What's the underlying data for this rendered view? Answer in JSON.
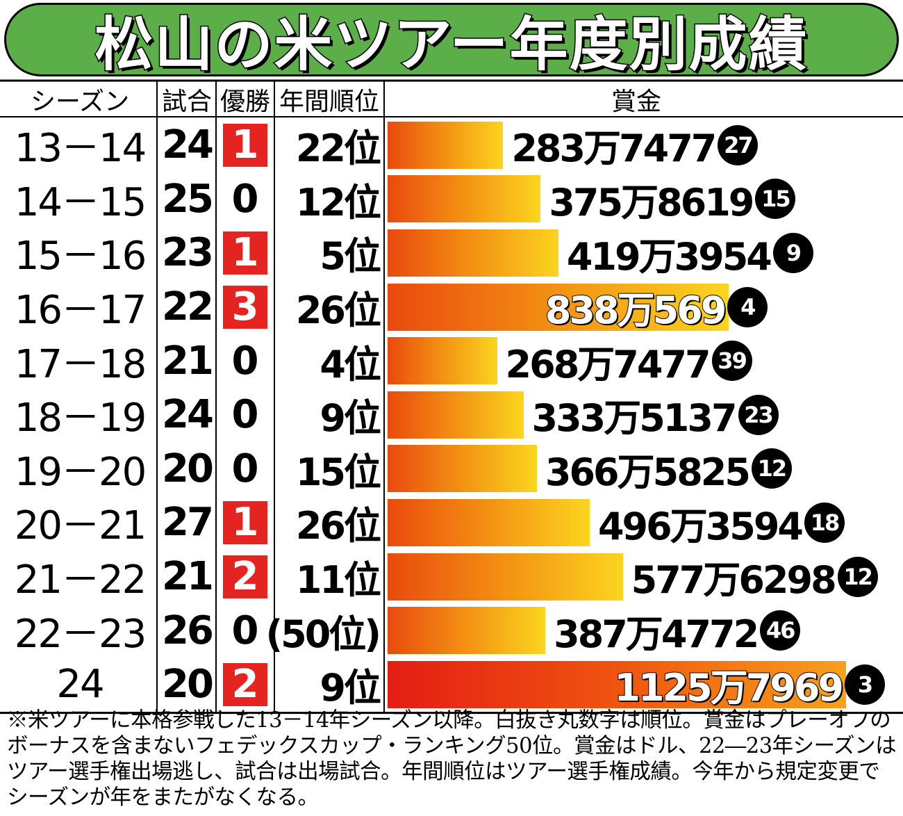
{
  "title": "松山の米ツアー年度別成績",
  "headers": {
    "season": "シーズン",
    "games": "試合",
    "wins": "優勝",
    "rank": "年間順位",
    "prize": "賞金"
  },
  "chart_data": {
    "type": "bar",
    "xlabel": "賞金",
    "categories": [
      "13－14",
      "14－15",
      "15－16",
      "16－17",
      "17－18",
      "18－19",
      "19－20",
      "20－21",
      "21－22",
      "22－23",
      "24"
    ],
    "games": [
      "24",
      "25",
      "23",
      "22",
      "21",
      "24",
      "20",
      "27",
      "21",
      "26",
      "20"
    ],
    "wins": [
      "1",
      "0",
      "1",
      "3",
      "0",
      "0",
      "0",
      "1",
      "2",
      "0",
      "2"
    ],
    "annual_rank": [
      "22位",
      "12位",
      "5位",
      "26位",
      "4位",
      "9位",
      "15位",
      "26位",
      "11位",
      "(50位)",
      "9位"
    ],
    "prize_labels": [
      "283万7477",
      "375万8619",
      "419万3954",
      "838万569",
      "268万7477",
      "333万5137",
      "366万5825",
      "496万3594",
      "577万6298",
      "387万4772",
      "1125万7969"
    ],
    "values": [
      2837477,
      3758619,
      4193954,
      8380569,
      2687477,
      3335137,
      3665825,
      4963594,
      5776298,
      3874772,
      11257969
    ],
    "prize_rank": [
      "27",
      "15",
      "9",
      "4",
      "39",
      "23",
      "12",
      "18",
      "12",
      "46",
      "3"
    ]
  },
  "colors": {
    "title_bg": "#5caf48",
    "win_box": "#e52421",
    "bar_start": "#e94a0e",
    "bar_end": "#fbd51f"
  },
  "footnote": "※米ツアーに本格参戦した13－14年シーズン以降。白抜き丸数字は順位。賞金はプレーオフのボーナスを含まないフェデックスカップ・ランキング50位。賞金はドル、22―23年シーズンはツアー選手権出場逃し、試合は出場試合。年間順位はツアー選手権成績。今年から規定変更でシーズンが年をまたがなくなる。"
}
